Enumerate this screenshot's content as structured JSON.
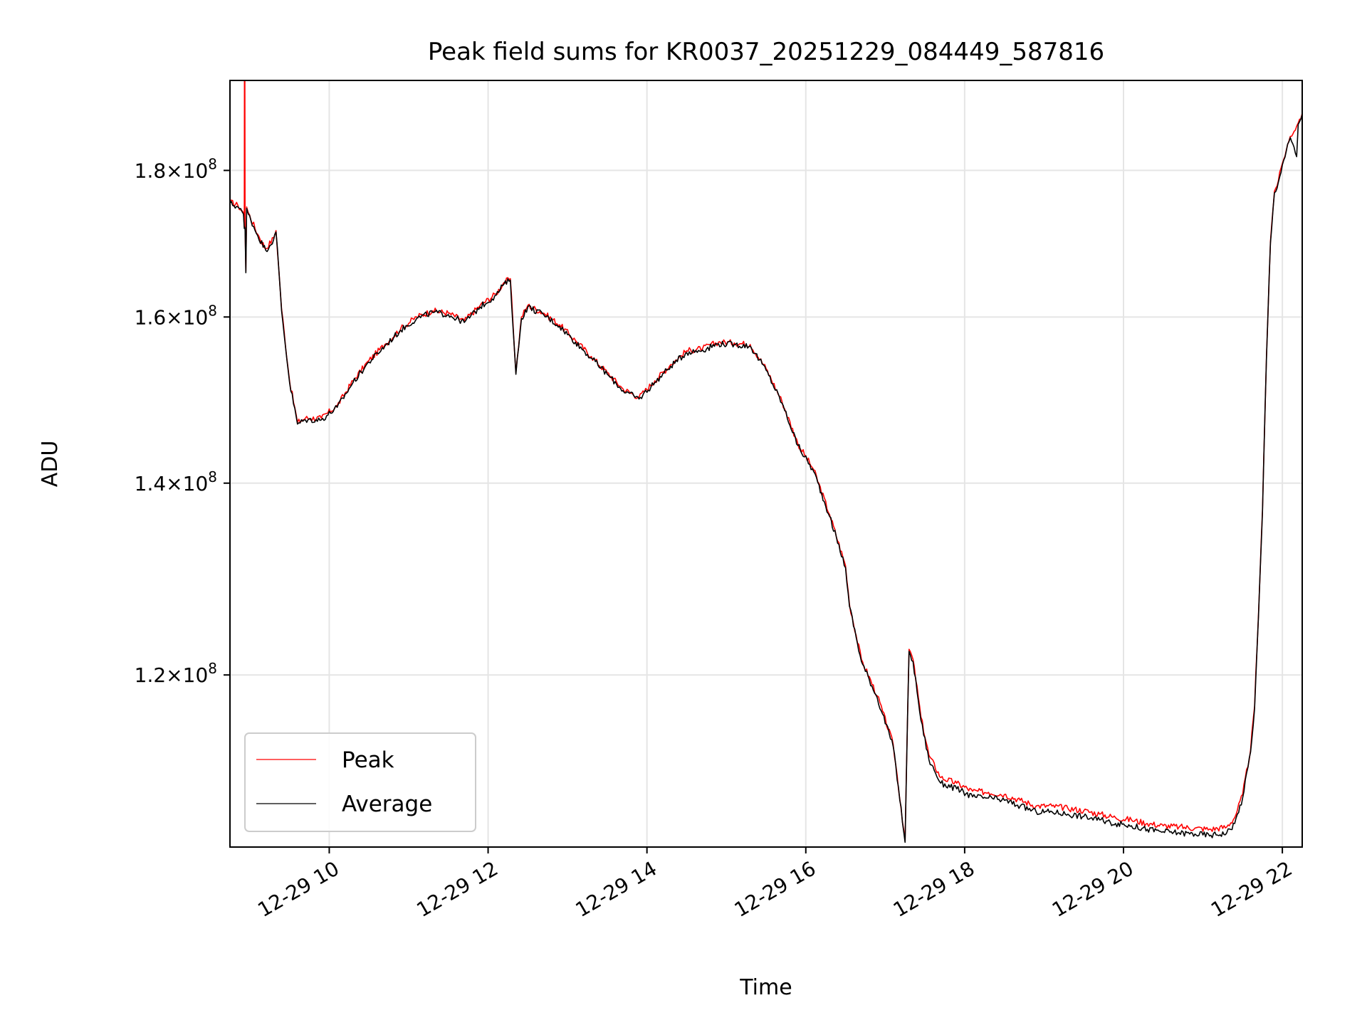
{
  "chart_data": {
    "type": "line",
    "title": "Peak field sums for KR0037_20251229_084449_587816",
    "xlabel": "Time",
    "ylabel": "ADU",
    "x_unit": "hours on 2025-12-29",
    "xlim": [
      8.75,
      22.25
    ],
    "ylim": [
      104500000,
      193500000
    ],
    "yscale": "log",
    "grid": true,
    "x_ticks": [
      {
        "value": 10,
        "label": "12-29 10"
      },
      {
        "value": 12,
        "label": "12-29 12"
      },
      {
        "value": 14,
        "label": "12-29 14"
      },
      {
        "value": 16,
        "label": "12-29 16"
      },
      {
        "value": 18,
        "label": "12-29 18"
      },
      {
        "value": 20,
        "label": "12-29 20"
      },
      {
        "value": 22,
        "label": "12-29 22"
      }
    ],
    "y_ticks": [
      {
        "value": 120000000,
        "mantissa": "1.2",
        "base": "10",
        "exponent": "8"
      },
      {
        "value": 140000000,
        "mantissa": "1.4",
        "base": "10",
        "exponent": "8"
      },
      {
        "value": 160000000,
        "mantissa": "1.6",
        "base": "10",
        "exponent": "8"
      },
      {
        "value": 180000000,
        "mantissa": "1.8",
        "base": "10",
        "exponent": "8"
      }
    ],
    "legend": {
      "position": "lower-left"
    },
    "series": [
      {
        "name": "Peak",
        "color": "#ff0000",
        "x": [
          8.75,
          8.85,
          8.92,
          8.93,
          8.935,
          8.94,
          8.95,
          8.96,
          8.98,
          9.1,
          9.2,
          9.3,
          9.33,
          9.4,
          9.5,
          9.6,
          9.7,
          9.9,
          10.1,
          10.3,
          10.5,
          10.7,
          10.9,
          11.1,
          11.3,
          11.5,
          11.7,
          11.9,
          12.1,
          12.2,
          12.28,
          12.35,
          12.42,
          12.5,
          12.7,
          12.9,
          13.1,
          13.3,
          13.5,
          13.7,
          13.9,
          14.1,
          14.3,
          14.5,
          14.7,
          14.9,
          15.1,
          15.3,
          15.5,
          15.7,
          15.9,
          16.1,
          16.3,
          16.5,
          16.55,
          16.7,
          16.9,
          17.1,
          17.25,
          17.3,
          17.35,
          17.45,
          17.55,
          17.7,
          17.9,
          18.1,
          18.3,
          18.5,
          18.7,
          18.9,
          19.1,
          19.3,
          19.5,
          19.7,
          19.9,
          20.1,
          20.3,
          20.5,
          20.7,
          20.9,
          21.1,
          21.3,
          21.4,
          21.5,
          21.6,
          21.65,
          21.7,
          21.75,
          21.8,
          21.85,
          21.9,
          21.95,
          22.0,
          22.1,
          22.18,
          22.2,
          22.25
        ],
        "values": [
          175500000,
          175000000,
          174000000,
          172000000,
          220000000,
          172000000,
          166000000,
          174800000,
          174000000,
          171000000,
          169000000,
          170500000,
          171500000,
          161000000,
          152000000,
          147000000,
          147500000,
          147500000,
          149000000,
          152000000,
          154500000,
          156500000,
          158500000,
          160000000,
          160800000,
          160500000,
          159500000,
          161500000,
          163000000,
          164500000,
          165000000,
          153000000,
          160000000,
          161500000,
          160500000,
          159000000,
          157000000,
          155000000,
          153000000,
          151000000,
          150000000,
          152000000,
          154000000,
          155700000,
          156000000,
          156800000,
          156700000,
          156500000,
          153500000,
          149500000,
          144500000,
          141500000,
          136500000,
          131000000,
          127000000,
          121500000,
          118000000,
          113500000,
          105000000,
          122500000,
          121500000,
          116000000,
          112500000,
          110500000,
          110000000,
          109300000,
          109200000,
          109000000,
          108500000,
          108000000,
          108000000,
          107800000,
          107600000,
          107300000,
          107000000,
          106800000,
          106500000,
          106300000,
          106200000,
          106100000,
          106000000,
          106200000,
          107000000,
          109000000,
          113000000,
          117000000,
          126000000,
          137000000,
          155000000,
          170000000,
          177000000,
          178500000,
          181000000,
          185000000,
          186500000,
          187000000,
          188500000
        ]
      },
      {
        "name": "Average",
        "color": "#000000",
        "x": [
          8.75,
          8.85,
          8.92,
          8.93,
          8.935,
          8.94,
          8.95,
          8.96,
          8.98,
          9.1,
          9.2,
          9.3,
          9.33,
          9.4,
          9.5,
          9.6,
          9.7,
          9.9,
          10.1,
          10.3,
          10.5,
          10.7,
          10.9,
          11.1,
          11.3,
          11.5,
          11.7,
          11.9,
          12.1,
          12.2,
          12.28,
          12.35,
          12.42,
          12.5,
          12.7,
          12.9,
          13.1,
          13.3,
          13.5,
          13.7,
          13.9,
          14.1,
          14.3,
          14.5,
          14.7,
          14.9,
          15.1,
          15.3,
          15.5,
          15.7,
          15.9,
          16.1,
          16.3,
          16.5,
          16.55,
          16.7,
          16.9,
          17.1,
          17.25,
          17.3,
          17.35,
          17.45,
          17.55,
          17.7,
          17.9,
          18.1,
          18.3,
          18.5,
          18.7,
          18.9,
          19.1,
          19.3,
          19.5,
          19.7,
          19.9,
          20.1,
          20.3,
          20.5,
          20.7,
          20.9,
          21.1,
          21.3,
          21.4,
          21.5,
          21.6,
          21.65,
          21.7,
          21.75,
          21.8,
          21.85,
          21.9,
          21.95,
          22.0,
          22.1,
          22.18,
          22.2,
          22.25
        ],
        "values": [
          175300000,
          174800000,
          173800000,
          171800000,
          172000000,
          171800000,
          165800000,
          174600000,
          173800000,
          170800000,
          168800000,
          170300000,
          171300000,
          160800000,
          151800000,
          146800000,
          147300000,
          147300000,
          148800000,
          151800000,
          154300000,
          156300000,
          158300000,
          159800000,
          160600000,
          160300000,
          159300000,
          161300000,
          162800000,
          164300000,
          164800000,
          152800000,
          159800000,
          161300000,
          160300000,
          158800000,
          156800000,
          154800000,
          152800000,
          150800000,
          149800000,
          151800000,
          153800000,
          155500000,
          155800000,
          156600000,
          156500000,
          156300000,
          153300000,
          149300000,
          144300000,
          141300000,
          136300000,
          130800000,
          126800000,
          121300000,
          117800000,
          113300000,
          104900000,
          122300000,
          121300000,
          115700000,
          112100000,
          110000000,
          109500000,
          108800000,
          108700000,
          108500000,
          108000000,
          107500000,
          107500000,
          107300000,
          107100000,
          106800000,
          106500000,
          106300000,
          106000000,
          105800000,
          105700000,
          105600000,
          105500000,
          105700000,
          106500000,
          108700000,
          112800000,
          116800000,
          125800000,
          136800000,
          154800000,
          169800000,
          176800000,
          178300000,
          180800000,
          184800000,
          182000000,
          186800000,
          188300000
        ]
      }
    ]
  }
}
